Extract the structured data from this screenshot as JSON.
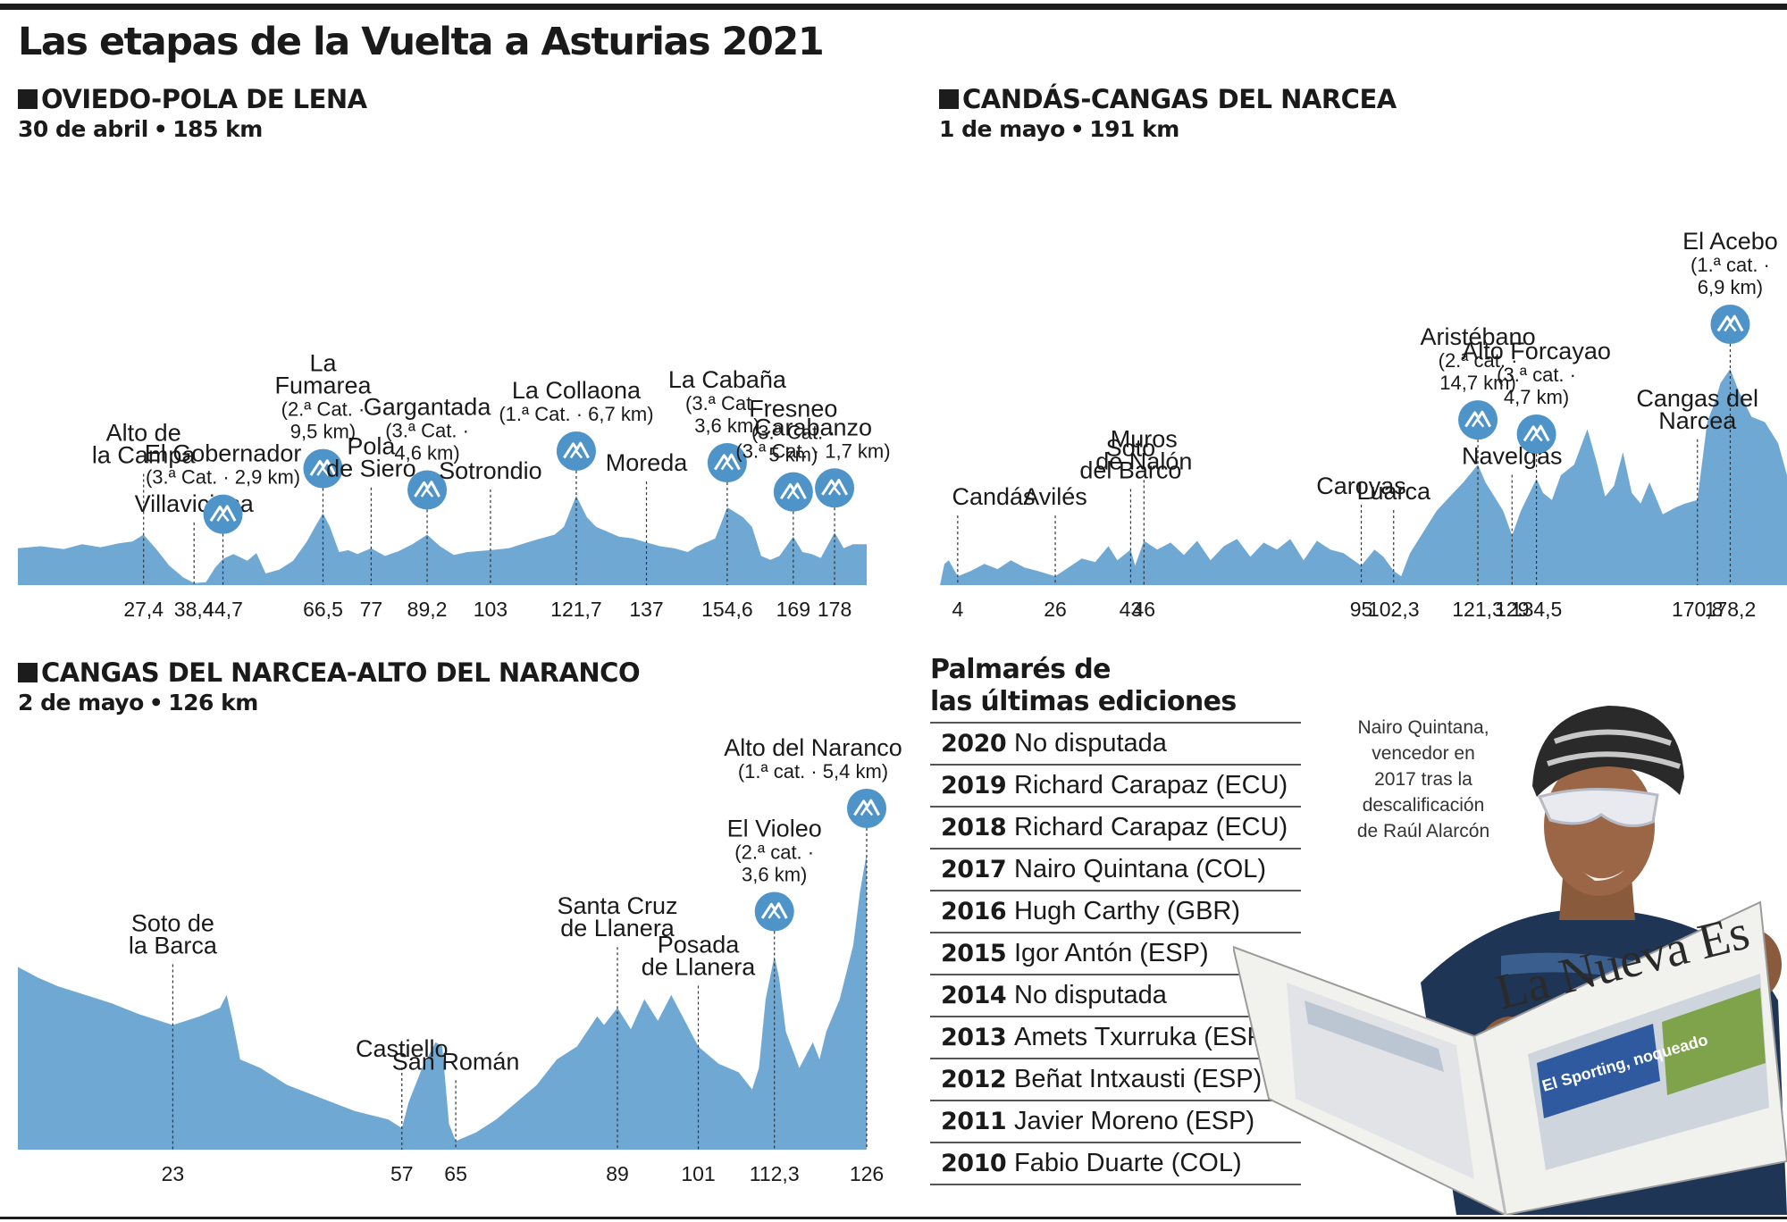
{
  "title": "Las etapas de la Vuelta a Asturias 2021",
  "colors": {
    "profile_fill": "#70a8d4",
    "icon_fill": "#4f94c8",
    "text": "#1a1a1a"
  },
  "stages": [
    {
      "name": "OVIEDO-POLA DE LENA",
      "date": "30 de abril",
      "distance": "185 km",
      "chart_data": {
        "type": "area",
        "x": [
          0,
          5,
          10,
          14,
          18,
          22,
          25,
          27.4,
          30,
          33,
          36,
          38.4,
          41,
          43,
          44.7,
          47,
          50,
          52,
          54,
          57,
          60,
          63,
          65,
          66.5,
          68,
          70,
          72,
          74,
          77,
          80,
          83,
          86,
          89.2,
          92,
          95,
          98,
          103,
          107,
          111,
          114,
          117,
          119,
          121.7,
          124,
          126,
          128,
          131,
          134,
          137,
          140,
          143,
          146,
          148,
          150,
          152,
          154.6,
          156,
          158,
          160,
          162,
          164,
          166,
          169,
          171,
          173,
          175,
          178,
          180,
          182,
          185
        ],
        "y": [
          38,
          40,
          37,
          42,
          39,
          43,
          45,
          52,
          38,
          20,
          8,
          2,
          3,
          18,
          27,
          32,
          25,
          33,
          12,
          16,
          25,
          45,
          62,
          74,
          60,
          34,
          36,
          32,
          38,
          30,
          35,
          42,
          52,
          40,
          31,
          34,
          36,
          38,
          44,
          48,
          52,
          60,
          92,
          70,
          60,
          56,
          50,
          48,
          44,
          40,
          38,
          34,
          40,
          44,
          48,
          80,
          76,
          70,
          60,
          30,
          26,
          30,
          50,
          34,
          32,
          28,
          54,
          38,
          42,
          42
        ],
        "xticks": [
          {
            "x": 27.4,
            "label": "27,4"
          },
          {
            "x": 38.4,
            "label": "38,4"
          },
          {
            "x": 44.7,
            "label": "44,7"
          },
          {
            "x": 66.5,
            "label": "66,5"
          },
          {
            "x": 77,
            "label": "77"
          },
          {
            "x": 89.2,
            "label": "89,2"
          },
          {
            "x": 103,
            "label": "103"
          },
          {
            "x": 121.7,
            "label": "121,7"
          },
          {
            "x": 137,
            "label": "137"
          },
          {
            "x": 154.6,
            "label": "154,6"
          },
          {
            "x": 169,
            "label": "169"
          },
          {
            "x": 178,
            "label": "178"
          }
        ],
        "annotations": [
          {
            "x": 27.4,
            "lines": [
              "Alto de",
              "la Campa"
            ]
          },
          {
            "x": 38.4,
            "lines": [
              "Villaviciosa"
            ]
          },
          {
            "x": 44.7,
            "lines": [
              "El Gobernador",
              "(3.ª Cat. · 2,9 km)"
            ],
            "climb": true
          },
          {
            "x": 66.5,
            "lines": [
              "La",
              "Fumarea",
              "(2.ª Cat. ·",
              "9,5 km)"
            ],
            "climb": true
          },
          {
            "x": 77,
            "lines": [
              "Pola",
              "de Siero"
            ]
          },
          {
            "x": 89.2,
            "lines": [
              "Gargantada",
              "(3.ª Cat. ·",
              "4,6 km)"
            ],
            "climb": true
          },
          {
            "x": 103,
            "lines": [
              "Sotrondio"
            ]
          },
          {
            "x": 121.7,
            "lines": [
              "La Collaona",
              "(1.ª Cat. · 6,7 km)"
            ],
            "climb": true
          },
          {
            "x": 137,
            "lines": [
              "Moreda"
            ]
          },
          {
            "x": 154.6,
            "lines": [
              "La Cabaña",
              "(3.ª Cat. ·",
              "3,6 km)"
            ],
            "climb": true
          },
          {
            "x": 169,
            "lines": [
              "Fresneo",
              "(3.ª Cat. ·",
              "5 km)"
            ],
            "climb": true
          },
          {
            "x": 178,
            "lines": [
              "Carabanzo",
              "(3.ª Cat. · 1,7 km)"
            ],
            "climb": true
          }
        ]
      }
    },
    {
      "name": "CANDÁS-CANGAS DEL NARCEA",
      "date": "1 de mayo",
      "distance": "191 km",
      "chart_data": {
        "type": "area",
        "x": [
          0,
          1,
          2,
          4,
          7,
          10,
          13,
          16,
          19,
          22,
          26,
          29,
          32,
          35,
          38,
          40,
          43,
          44,
          46,
          49,
          52,
          55,
          58,
          61,
          64,
          67,
          70,
          73,
          76,
          79,
          82,
          85,
          88,
          91,
          95,
          98,
          100,
          102.3,
          104,
          106,
          109,
          112,
          115,
          118,
          121.3,
          123,
          125,
          127,
          129,
          131,
          134.5,
          136,
          138,
          140,
          143,
          146,
          148,
          150,
          152,
          154,
          156,
          158,
          160,
          163,
          166,
          168,
          170.8,
          173,
          175,
          176,
          178.2,
          180,
          183,
          186,
          189,
          191
        ],
        "y": [
          0,
          12,
          14,
          5,
          8,
          12,
          9,
          14,
          10,
          8,
          5,
          10,
          15,
          13,
          22,
          14,
          20,
          11,
          25,
          20,
          24,
          17,
          25,
          14,
          22,
          26,
          16,
          24,
          20,
          26,
          14,
          25,
          20,
          18,
          11,
          20,
          16,
          8,
          5,
          18,
          30,
          42,
          50,
          58,
          68,
          58,
          50,
          42,
          28,
          42,
          60,
          52,
          48,
          62,
          68,
          88,
          70,
          50,
          56,
          75,
          52,
          46,
          58,
          40,
          44,
          46,
          48,
          92,
          105,
          114,
          122,
          110,
          95,
          92,
          80,
          62
        ],
        "xticks": [
          {
            "x": 4,
            "label": "4"
          },
          {
            "x": 26,
            "label": "26"
          },
          {
            "x": 43,
            "label": "43"
          },
          {
            "x": 46,
            "label": "46"
          },
          {
            "x": 95,
            "label": "95"
          },
          {
            "x": 102.3,
            "label": "102,3"
          },
          {
            "x": 121.3,
            "label": "121,3"
          },
          {
            "x": 129,
            "label": "129"
          },
          {
            "x": 134.5,
            "label": "134,5"
          },
          {
            "x": 170.8,
            "label": "170,8"
          },
          {
            "x": 178.2,
            "label": "178,2"
          }
        ],
        "annotations": [
          {
            "x": 4,
            "lines": [
              "Candás"
            ]
          },
          {
            "x": 26,
            "lines": [
              "Avilés"
            ]
          },
          {
            "x": 43,
            "lines": [
              "Soto",
              "del Barco"
            ]
          },
          {
            "x": 46,
            "lines": [
              "Muros",
              "de Nalón"
            ]
          },
          {
            "x": 95,
            "lines": [
              "Caroyas"
            ]
          },
          {
            "x": 102.3,
            "lines": [
              "Luarca"
            ]
          },
          {
            "x": 121.3,
            "lines": [
              "Aristébano",
              "(2.ª cat. ·",
              "14,7 km)"
            ],
            "climb": true
          },
          {
            "x": 129,
            "lines": [
              "Navelgas"
            ]
          },
          {
            "x": 134.5,
            "lines": [
              "Alto Forcayao",
              "(3.ª cat. ·",
              "4,7 km)"
            ],
            "climb": true
          },
          {
            "x": 170.8,
            "lines": [
              "Cangas del",
              "Narcea"
            ]
          },
          {
            "x": 178.2,
            "lines": [
              "El Acebo",
              "(1.ª cat. ·",
              "6,9 km)"
            ],
            "climb": true
          }
        ]
      }
    },
    {
      "name": "CANGAS DEL NARCEA-ALTO DEL NARANCO",
      "date": "2 de mayo",
      "distance": "126 km",
      "chart_data": {
        "type": "area",
        "x": [
          0,
          3,
          6,
          10,
          14,
          18,
          23,
          27,
          30,
          31,
          32,
          33,
          36,
          40,
          45,
          50,
          55,
          57,
          58,
          60,
          62,
          63,
          64,
          65,
          68,
          71,
          74,
          77,
          80,
          83,
          86,
          87,
          89,
          91,
          93,
          95,
          97,
          99,
          101,
          104,
          107,
          109,
          110,
          111,
          112.3,
          113,
          114,
          116,
          118,
          119,
          120,
          122,
          124,
          125,
          126
        ],
        "y": [
          85,
          80,
          76,
          72,
          68,
          63,
          58,
          62,
          66,
          72,
          58,
          42,
          38,
          30,
          24,
          18,
          14,
          10,
          22,
          38,
          50,
          48,
          12,
          4,
          8,
          14,
          22,
          30,
          42,
          48,
          62,
          58,
          66,
          56,
          70,
          60,
          72,
          60,
          48,
          40,
          36,
          28,
          38,
          70,
          90,
          80,
          55,
          38,
          50,
          42,
          55,
          70,
          95,
          120,
          138
        ],
        "xticks": [
          {
            "x": 23,
            "label": "23"
          },
          {
            "x": 57,
            "label": "57"
          },
          {
            "x": 65,
            "label": "65"
          },
          {
            "x": 89,
            "label": "89"
          },
          {
            "x": 101,
            "label": "101"
          },
          {
            "x": 112.3,
            "label": "112,3"
          },
          {
            "x": 126,
            "label": "126"
          }
        ],
        "annotations": [
          {
            "x": 23,
            "lines": [
              "Soto de",
              "la Barca"
            ]
          },
          {
            "x": 57,
            "lines": [
              "Castiello"
            ]
          },
          {
            "x": 65,
            "lines": [
              "San Román"
            ]
          },
          {
            "x": 89,
            "lines": [
              "Santa Cruz",
              "de Llanera"
            ]
          },
          {
            "x": 101,
            "lines": [
              "Posada",
              "de Llanera"
            ]
          },
          {
            "x": 112.3,
            "lines": [
              "El Violeo",
              "(2.ª cat. ·",
              "3,6 km)"
            ],
            "climb": true
          },
          {
            "x": 126,
            "lines": [
              "Alto del Naranco",
              "(1.ª cat. · 5,4 km)"
            ],
            "climb": true
          }
        ]
      }
    }
  ],
  "palmares": {
    "title_lines": [
      "Palmarés de",
      "las últimas ediciones"
    ],
    "rows": [
      {
        "year": "2020",
        "winner": "No disputada"
      },
      {
        "year": "2019",
        "winner": "Richard Carapaz (ECU)"
      },
      {
        "year": "2018",
        "winner": "Richard Carapaz (ECU)"
      },
      {
        "year": "2017",
        "winner": "Nairo Quintana (COL)"
      },
      {
        "year": "2016",
        "winner": "Hugh Carthy (GBR)"
      },
      {
        "year": "2015",
        "winner": "Igor Antón (ESP)"
      },
      {
        "year": "2014",
        "winner": "No disputada"
      },
      {
        "year": "2013",
        "winner": "Amets Txurruka (ESP)"
      },
      {
        "year": "2012",
        "winner": "Beñat Intxausti (ESP)"
      },
      {
        "year": "2011",
        "winner": "Javier Moreno (ESP)"
      },
      {
        "year": "2010",
        "winner": "Fabio Duarte (COL)"
      }
    ]
  },
  "photo": {
    "caption_lines": [
      "Nairo Quintana,",
      "vencedor en",
      "2017 tras la",
      "descalificación",
      "de Raúl Alarcón"
    ],
    "newspaper_masthead": "La Nueva Es",
    "newspaper_headline": "El Sporting, noqueado"
  }
}
